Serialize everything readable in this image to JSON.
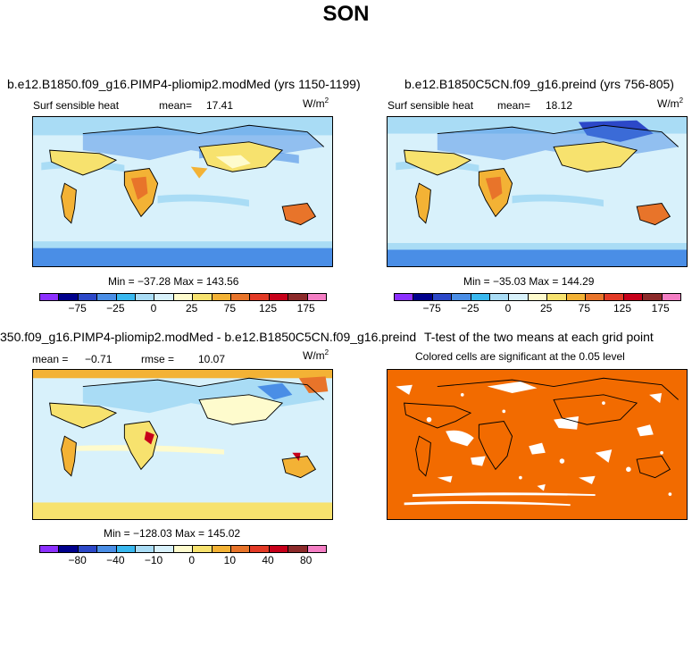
{
  "figure": {
    "title": "SON"
  },
  "panels": {
    "top_left": {
      "title": "b.e12.B1850.f09_g16.PIMP4-pliomip2.modMed (yrs 1150-1199)",
      "variable": "Surf sensible heat",
      "mean_label": "mean=",
      "mean": "17.41",
      "units_base": "W/m",
      "units_exp": "2",
      "minmax": "Min = −37.28 Max = 143.56"
    },
    "top_right": {
      "title": "b.e12.B1850C5CN.f09_g16.preind (yrs 756-805)",
      "variable": "Surf sensible heat",
      "mean_label": "mean=",
      "mean": "18.12",
      "units_base": "W/m",
      "units_exp": "2",
      "minmax": "Min = −35.03 Max = 144.29"
    },
    "bottom_left": {
      "title": "350.f09_g16.PIMP4-pliomip2.modMed - b.e12.B1850C5CN.f09_g16.preind",
      "mean_label": "mean =",
      "mean": "−0.71",
      "rmse_label": "rmse =",
      "rmse": "10.07",
      "units_base": "W/m",
      "units_exp": "2",
      "minmax": "Min = −128.03 Max = 145.02"
    },
    "bottom_right": {
      "title": "T-test of the two means at each grid point",
      "subtitle": "Colored cells are significant at the 0.05 level",
      "significant_color": "#f26b00"
    }
  },
  "colorbars": {
    "top": {
      "colors": [
        "#8c30ff",
        "#00008c",
        "#2c48c8",
        "#4a8ee6",
        "#39b8ef",
        "#a9dcf5",
        "#d8f1fb",
        "#fefbcd",
        "#f7e26e",
        "#f3b235",
        "#e8742a",
        "#e33a26",
        "#c7001a",
        "#8c2a2a",
        "#f47ec4"
      ],
      "tick_labels": [
        "−75",
        "−25",
        "0",
        "25",
        "75",
        "125",
        "175"
      ]
    },
    "bottom": {
      "colors": [
        "#8c30ff",
        "#00008c",
        "#2c48c8",
        "#4a8ee6",
        "#39b8ef",
        "#a9dcf5",
        "#d8f1fb",
        "#fefbcd",
        "#f7e26e",
        "#f3b235",
        "#e8742a",
        "#e33a26",
        "#c7001a",
        "#8c2a2a",
        "#f47ec4"
      ],
      "tick_labels": [
        "−80",
        "−40",
        "−10",
        "0",
        "10",
        "40",
        "80"
      ]
    }
  }
}
